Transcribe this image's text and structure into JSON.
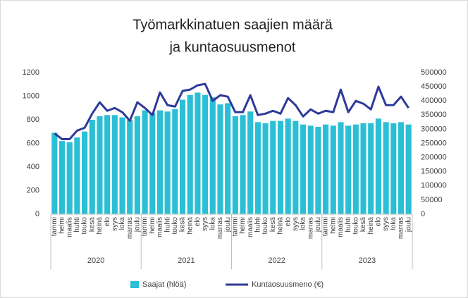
{
  "chart_data": {
    "type": "bar-line",
    "title": [
      "Työmarkkinatuen saajien määrä",
      "ja kuntaosuusmenot"
    ],
    "categories": [
      "tammi",
      "helmi",
      "maalis",
      "huhti",
      "touko",
      "kesä",
      "heinä",
      "elo",
      "syys",
      "loka",
      "marras",
      "joulu",
      "tammi",
      "helmi",
      "maalis",
      "huhti",
      "touko",
      "kesä",
      "heinä",
      "elo",
      "syys",
      "loka",
      "marras",
      "joulu",
      "tammi",
      "helmi",
      "maalis",
      "huhti",
      "touko",
      "kesä",
      "heinä",
      "elo",
      "syys",
      "loka",
      "marras",
      "joulu",
      "tammi",
      "helmi",
      "maalis",
      "huhti",
      "touko",
      "kesä",
      "heinä",
      "elo",
      "syys",
      "loka",
      "marras",
      "joulu"
    ],
    "groups": [
      "2020",
      "2021",
      "2022",
      "2023"
    ],
    "series": [
      {
        "name": "Saajat (hlöä)",
        "color": "#2bbfd6",
        "kind": "bar",
        "values": [
          690,
          620,
          610,
          650,
          700,
          800,
          830,
          840,
          840,
          820,
          800,
          830,
          880,
          860,
          880,
          870,
          890,
          970,
          1010,
          1030,
          1010,
          990,
          930,
          940,
          830,
          840,
          870,
          780,
          770,
          790,
          790,
          810,
          790,
          760,
          750,
          740,
          760,
          750,
          780,
          750,
          760,
          770,
          770,
          810,
          780,
          770,
          780,
          760
        ]
      },
      {
        "name": "Kuntaosuusmeno (€)",
        "color": "#2e3a9a",
        "kind": "line",
        "axis": "y2",
        "values": [
          285000,
          265000,
          265000,
          295000,
          305000,
          355000,
          395000,
          365000,
          375000,
          360000,
          330000,
          395000,
          375000,
          350000,
          430000,
          385000,
          380000,
          435000,
          440000,
          455000,
          460000,
          400000,
          420000,
          415000,
          360000,
          360000,
          420000,
          350000,
          355000,
          365000,
          355000,
          410000,
          385000,
          345000,
          370000,
          355000,
          365000,
          360000,
          440000,
          360000,
          400000,
          390000,
          370000,
          450000,
          385000,
          385000,
          415000,
          375000
        ]
      }
    ],
    "ylim": [
      0,
      1200
    ],
    "yticks": [
      0,
      200,
      400,
      600,
      800,
      1000,
      1200
    ],
    "y2lim": [
      0,
      500000
    ],
    "y2ticks": [
      0,
      50000,
      100000,
      150000,
      200000,
      250000,
      300000,
      350000,
      400000,
      450000,
      500000
    ],
    "grid": false,
    "legend": "bottom"
  }
}
